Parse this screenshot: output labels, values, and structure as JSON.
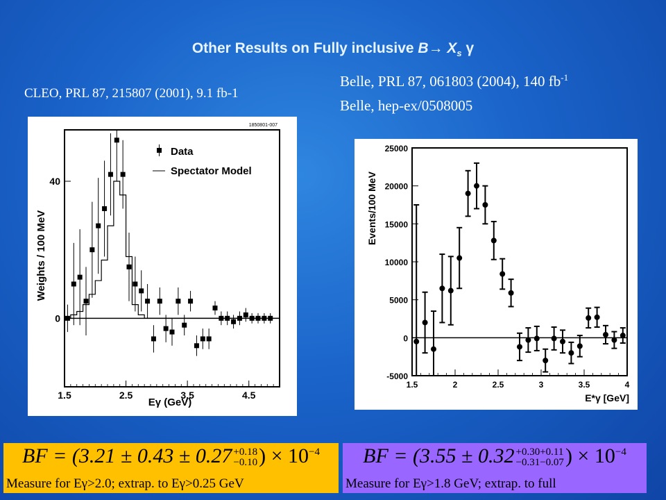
{
  "title": {
    "prefix": "Other Results on Fully inclusive ",
    "b": "B",
    "arrow": "→",
    "xs": "X",
    "xs_sub": "s",
    "gamma": "γ"
  },
  "citations": {
    "cleo": "CLEO, PRL 87, 215807 (2001), 9.1 fb-1",
    "belle_line1": "Belle, PRL 87, 061803 (2004), 140 fb",
    "belle_line1_sup": "-1",
    "belle_line2": "Belle, hep-ex/0508005"
  },
  "formulas": {
    "cleo": {
      "lhs": "BF = (3.21 ± 0.43 ± 0.27",
      "sup": "+0.18",
      "sub": "−0.10",
      "rhs": ") × 10",
      "exp": "−4",
      "note": "Measure for Eγ>2.0; extrap. to Eγ>0.25 GeV",
      "bg_color": "#ffc000"
    },
    "belle": {
      "lhs": "BF = (3.55 ± 0.32",
      "sup": "+0.30+0.11",
      "sub": "−0.31−0.07",
      "rhs": ") × 10",
      "exp": "−4",
      "note": "Measure for Eγ>1.8 GeV; extrap. to full",
      "bg_color": "#9966ff"
    }
  },
  "chart_data": [
    {
      "type": "scatter",
      "id_label": "1850801-007",
      "xlabel": "Eγ (GeV)",
      "ylabel": "Weights / 100 MeV",
      "xlim": [
        1.5,
        5.0
      ],
      "ylim": [
        -20,
        55
      ],
      "xticks": [
        1.5,
        2.5,
        3.5,
        4.5
      ],
      "yticks": [
        0,
        40
      ],
      "legend": [
        "Data",
        "Spectator Model"
      ],
      "series": [
        {
          "name": "Data",
          "x": [
            1.55,
            1.65,
            1.75,
            1.85,
            1.95,
            2.05,
            2.15,
            2.25,
            2.35,
            2.45,
            2.55,
            2.65,
            2.75,
            2.85,
            2.95,
            3.05,
            3.15,
            3.25,
            3.35,
            3.45,
            3.55,
            3.65,
            3.75,
            3.85,
            3.95,
            4.05,
            4.15,
            4.25,
            4.35,
            4.45,
            4.55,
            4.65,
            4.75,
            4.85
          ],
          "y": [
            0,
            10,
            12,
            5,
            20,
            27,
            32,
            42,
            52,
            42,
            15,
            10,
            8,
            5,
            -6,
            5,
            -3,
            -4,
            5,
            -2,
            5,
            -8,
            -6,
            -6,
            3,
            0,
            0,
            -1,
            0,
            1,
            0,
            0,
            0,
            0
          ],
          "err": [
            4,
            12,
            14,
            10,
            14,
            14,
            14,
            12,
            12,
            10,
            10,
            8,
            6,
            5,
            4,
            4,
            4,
            4,
            4,
            3,
            3,
            3,
            3,
            3,
            2,
            2,
            2,
            2,
            2,
            2,
            1.5,
            1.5,
            1.5,
            1.5
          ]
        },
        {
          "name": "Spectator Model",
          "x": [
            1.5,
            1.6,
            1.7,
            1.8,
            1.9,
            2.0,
            2.1,
            2.2,
            2.3,
            2.4,
            2.5,
            2.6,
            2.7,
            2.8,
            2.9,
            5.0
          ],
          "y": [
            0,
            1,
            2,
            4,
            7,
            11,
            17,
            27,
            40,
            36,
            18,
            4,
            1,
            0,
            0,
            0
          ]
        }
      ]
    },
    {
      "type": "scatter",
      "xlabel": "E*γ [GeV]",
      "ylabel": "Events/100 MeV",
      "xlim": [
        1.5,
        4.0
      ],
      "ylim": [
        -5000,
        25000
      ],
      "xticks": [
        1.5,
        2,
        2.5,
        3,
        3.5,
        4
      ],
      "yticks": [
        -5000,
        0,
        5000,
        10000,
        15000,
        20000,
        25000
      ],
      "series": [
        {
          "name": "Data",
          "x": [
            1.55,
            1.65,
            1.75,
            1.85,
            1.95,
            2.05,
            2.15,
            2.25,
            2.35,
            2.45,
            2.55,
            2.65,
            2.75,
            2.85,
            2.95,
            3.05,
            3.15,
            3.25,
            3.35,
            3.45,
            3.55,
            3.65,
            3.75,
            3.85,
            3.95
          ],
          "y": [
            -500,
            2000,
            -1500,
            6500,
            6200,
            10500,
            19000,
            20000,
            17500,
            12800,
            8400,
            5900,
            -1200,
            -300,
            -100,
            -3000,
            -100,
            -500,
            -2000,
            -1100,
            2600,
            2700,
            400,
            -300,
            300
          ],
          "err": [
            18000,
            4000,
            5000,
            4500,
            4500,
            4000,
            3000,
            3000,
            2500,
            2500,
            2000,
            1800,
            1800,
            1600,
            1600,
            1500,
            1500,
            1500,
            1400,
            1400,
            1300,
            1300,
            1200,
            1100,
            1000
          ]
        }
      ]
    }
  ]
}
